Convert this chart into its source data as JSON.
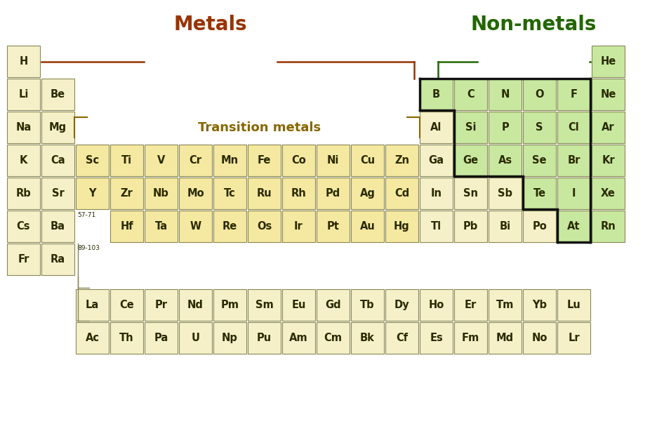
{
  "metal_color": "#f5f0c8",
  "transition_color": "#f5e8a0",
  "nonmetal_color": "#c8e8a0",
  "border_color": "#888855",
  "text_color": "#2a2a00",
  "metals_label_color": "#993300",
  "nonmetals_label_color": "#226600",
  "transition_label_color": "#886600",
  "bg_color": "#ffffff",
  "elements": [
    {
      "symbol": "H",
      "row": 0,
      "col": 0,
      "type": "metal"
    },
    {
      "symbol": "He",
      "row": 0,
      "col": 17,
      "type": "nonmetal"
    },
    {
      "symbol": "Li",
      "row": 1,
      "col": 0,
      "type": "metal"
    },
    {
      "symbol": "Be",
      "row": 1,
      "col": 1,
      "type": "metal"
    },
    {
      "symbol": "B",
      "row": 1,
      "col": 12,
      "type": "nonmetal"
    },
    {
      "symbol": "C",
      "row": 1,
      "col": 13,
      "type": "nonmetal"
    },
    {
      "symbol": "N",
      "row": 1,
      "col": 14,
      "type": "nonmetal"
    },
    {
      "symbol": "O",
      "row": 1,
      "col": 15,
      "type": "nonmetal"
    },
    {
      "symbol": "F",
      "row": 1,
      "col": 16,
      "type": "nonmetal"
    },
    {
      "symbol": "Ne",
      "row": 1,
      "col": 17,
      "type": "nonmetal"
    },
    {
      "symbol": "Na",
      "row": 2,
      "col": 0,
      "type": "metal"
    },
    {
      "symbol": "Mg",
      "row": 2,
      "col": 1,
      "type": "metal"
    },
    {
      "symbol": "Al",
      "row": 2,
      "col": 12,
      "type": "metal"
    },
    {
      "symbol": "Si",
      "row": 2,
      "col": 13,
      "type": "nonmetal"
    },
    {
      "symbol": "P",
      "row": 2,
      "col": 14,
      "type": "nonmetal"
    },
    {
      "symbol": "S",
      "row": 2,
      "col": 15,
      "type": "nonmetal"
    },
    {
      "symbol": "Cl",
      "row": 2,
      "col": 16,
      "type": "nonmetal"
    },
    {
      "symbol": "Ar",
      "row": 2,
      "col": 17,
      "type": "nonmetal"
    },
    {
      "symbol": "K",
      "row": 3,
      "col": 0,
      "type": "metal"
    },
    {
      "symbol": "Ca",
      "row": 3,
      "col": 1,
      "type": "metal"
    },
    {
      "symbol": "Sc",
      "row": 3,
      "col": 2,
      "type": "transition"
    },
    {
      "symbol": "Ti",
      "row": 3,
      "col": 3,
      "type": "transition"
    },
    {
      "symbol": "V",
      "row": 3,
      "col": 4,
      "type": "transition"
    },
    {
      "symbol": "Cr",
      "row": 3,
      "col": 5,
      "type": "transition"
    },
    {
      "symbol": "Mn",
      "row": 3,
      "col": 6,
      "type": "transition"
    },
    {
      "symbol": "Fe",
      "row": 3,
      "col": 7,
      "type": "transition"
    },
    {
      "symbol": "Co",
      "row": 3,
      "col": 8,
      "type": "transition"
    },
    {
      "symbol": "Ni",
      "row": 3,
      "col": 9,
      "type": "transition"
    },
    {
      "symbol": "Cu",
      "row": 3,
      "col": 10,
      "type": "transition"
    },
    {
      "symbol": "Zn",
      "row": 3,
      "col": 11,
      "type": "transition"
    },
    {
      "symbol": "Ga",
      "row": 3,
      "col": 12,
      "type": "metal"
    },
    {
      "symbol": "Ge",
      "row": 3,
      "col": 13,
      "type": "nonmetal"
    },
    {
      "symbol": "As",
      "row": 3,
      "col": 14,
      "type": "nonmetal"
    },
    {
      "symbol": "Se",
      "row": 3,
      "col": 15,
      "type": "nonmetal"
    },
    {
      "symbol": "Br",
      "row": 3,
      "col": 16,
      "type": "nonmetal"
    },
    {
      "symbol": "Kr",
      "row": 3,
      "col": 17,
      "type": "nonmetal"
    },
    {
      "symbol": "Rb",
      "row": 4,
      "col": 0,
      "type": "metal"
    },
    {
      "symbol": "Sr",
      "row": 4,
      "col": 1,
      "type": "metal"
    },
    {
      "symbol": "Y",
      "row": 4,
      "col": 2,
      "type": "transition"
    },
    {
      "symbol": "Zr",
      "row": 4,
      "col": 3,
      "type": "transition"
    },
    {
      "symbol": "Nb",
      "row": 4,
      "col": 4,
      "type": "transition"
    },
    {
      "symbol": "Mo",
      "row": 4,
      "col": 5,
      "type": "transition"
    },
    {
      "symbol": "Tc",
      "row": 4,
      "col": 6,
      "type": "transition"
    },
    {
      "symbol": "Ru",
      "row": 4,
      "col": 7,
      "type": "transition"
    },
    {
      "symbol": "Rh",
      "row": 4,
      "col": 8,
      "type": "transition"
    },
    {
      "symbol": "Pd",
      "row": 4,
      "col": 9,
      "type": "transition"
    },
    {
      "symbol": "Ag",
      "row": 4,
      "col": 10,
      "type": "transition"
    },
    {
      "symbol": "Cd",
      "row": 4,
      "col": 11,
      "type": "transition"
    },
    {
      "symbol": "In",
      "row": 4,
      "col": 12,
      "type": "metal"
    },
    {
      "symbol": "Sn",
      "row": 4,
      "col": 13,
      "type": "metal"
    },
    {
      "symbol": "Sb",
      "row": 4,
      "col": 14,
      "type": "metal"
    },
    {
      "symbol": "Te",
      "row": 4,
      "col": 15,
      "type": "nonmetal"
    },
    {
      "symbol": "I",
      "row": 4,
      "col": 16,
      "type": "nonmetal"
    },
    {
      "symbol": "Xe",
      "row": 4,
      "col": 17,
      "type": "nonmetal"
    },
    {
      "symbol": "Cs",
      "row": 5,
      "col": 0,
      "type": "metal"
    },
    {
      "symbol": "Ba",
      "row": 5,
      "col": 1,
      "type": "metal"
    },
    {
      "symbol": "Hf",
      "row": 5,
      "col": 3,
      "type": "transition"
    },
    {
      "symbol": "Ta",
      "row": 5,
      "col": 4,
      "type": "transition"
    },
    {
      "symbol": "W",
      "row": 5,
      "col": 5,
      "type": "transition"
    },
    {
      "symbol": "Re",
      "row": 5,
      "col": 6,
      "type": "transition"
    },
    {
      "symbol": "Os",
      "row": 5,
      "col": 7,
      "type": "transition"
    },
    {
      "symbol": "Ir",
      "row": 5,
      "col": 8,
      "type": "transition"
    },
    {
      "symbol": "Pt",
      "row": 5,
      "col": 9,
      "type": "transition"
    },
    {
      "symbol": "Au",
      "row": 5,
      "col": 10,
      "type": "transition"
    },
    {
      "symbol": "Hg",
      "row": 5,
      "col": 11,
      "type": "transition"
    },
    {
      "symbol": "Tl",
      "row": 5,
      "col": 12,
      "type": "metal"
    },
    {
      "symbol": "Pb",
      "row": 5,
      "col": 13,
      "type": "metal"
    },
    {
      "symbol": "Bi",
      "row": 5,
      "col": 14,
      "type": "metal"
    },
    {
      "symbol": "Po",
      "row": 5,
      "col": 15,
      "type": "metal"
    },
    {
      "symbol": "At",
      "row": 5,
      "col": 16,
      "type": "nonmetal"
    },
    {
      "symbol": "Rn",
      "row": 5,
      "col": 17,
      "type": "nonmetal"
    },
    {
      "symbol": "Fr",
      "row": 6,
      "col": 0,
      "type": "metal"
    },
    {
      "symbol": "Ra",
      "row": 6,
      "col": 1,
      "type": "metal"
    },
    {
      "symbol": "La",
      "row": 8,
      "col": 2,
      "type": "metal"
    },
    {
      "symbol": "Ce",
      "row": 8,
      "col": 3,
      "type": "metal"
    },
    {
      "symbol": "Pr",
      "row": 8,
      "col": 4,
      "type": "metal"
    },
    {
      "symbol": "Nd",
      "row": 8,
      "col": 5,
      "type": "metal"
    },
    {
      "symbol": "Pm",
      "row": 8,
      "col": 6,
      "type": "metal"
    },
    {
      "symbol": "Sm",
      "row": 8,
      "col": 7,
      "type": "metal"
    },
    {
      "symbol": "Eu",
      "row": 8,
      "col": 8,
      "type": "metal"
    },
    {
      "symbol": "Gd",
      "row": 8,
      "col": 9,
      "type": "metal"
    },
    {
      "symbol": "Tb",
      "row": 8,
      "col": 10,
      "type": "metal"
    },
    {
      "symbol": "Dy",
      "row": 8,
      "col": 11,
      "type": "metal"
    },
    {
      "symbol": "Ho",
      "row": 8,
      "col": 12,
      "type": "metal"
    },
    {
      "symbol": "Er",
      "row": 8,
      "col": 13,
      "type": "metal"
    },
    {
      "symbol": "Tm",
      "row": 8,
      "col": 14,
      "type": "metal"
    },
    {
      "symbol": "Yb",
      "row": 8,
      "col": 15,
      "type": "metal"
    },
    {
      "symbol": "Lu",
      "row": 8,
      "col": 16,
      "type": "metal"
    },
    {
      "symbol": "Ac",
      "row": 9,
      "col": 2,
      "type": "metal"
    },
    {
      "symbol": "Th",
      "row": 9,
      "col": 3,
      "type": "metal"
    },
    {
      "symbol": "Pa",
      "row": 9,
      "col": 4,
      "type": "metal"
    },
    {
      "symbol": "U",
      "row": 9,
      "col": 5,
      "type": "metal"
    },
    {
      "symbol": "Np",
      "row": 9,
      "col": 6,
      "type": "metal"
    },
    {
      "symbol": "Pu",
      "row": 9,
      "col": 7,
      "type": "metal"
    },
    {
      "symbol": "Am",
      "row": 9,
      "col": 8,
      "type": "metal"
    },
    {
      "symbol": "Cm",
      "row": 9,
      "col": 9,
      "type": "metal"
    },
    {
      "symbol": "Bk",
      "row": 9,
      "col": 10,
      "type": "metal"
    },
    {
      "symbol": "Cf",
      "row": 9,
      "col": 11,
      "type": "metal"
    },
    {
      "symbol": "Es",
      "row": 9,
      "col": 12,
      "type": "metal"
    },
    {
      "symbol": "Fm",
      "row": 9,
      "col": 13,
      "type": "metal"
    },
    {
      "symbol": "Md",
      "row": 9,
      "col": 14,
      "type": "metal"
    },
    {
      "symbol": "No",
      "row": 9,
      "col": 15,
      "type": "metal"
    },
    {
      "symbol": "Lr",
      "row": 9,
      "col": 16,
      "type": "metal"
    }
  ]
}
